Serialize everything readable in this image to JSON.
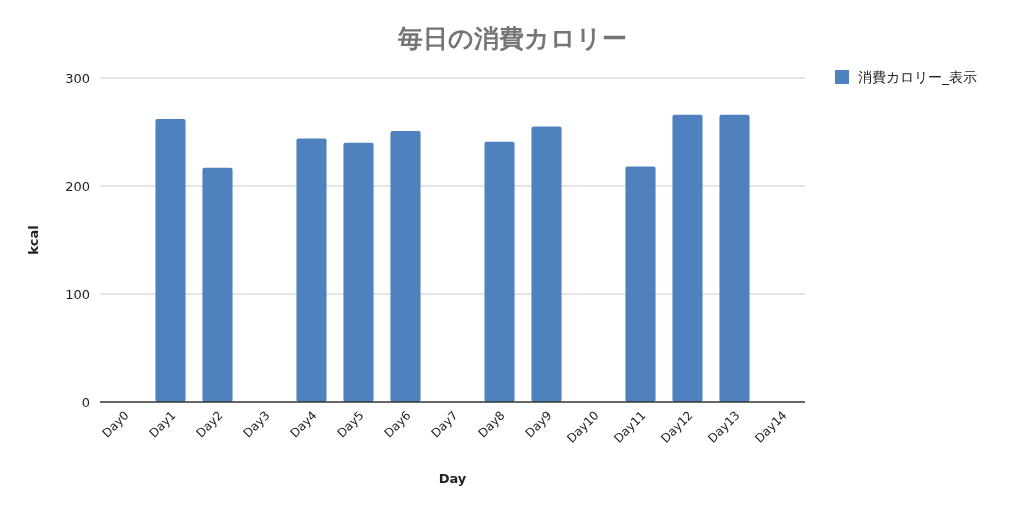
{
  "chart_data": {
    "type": "bar",
    "title": "毎日の消費カロリー",
    "xlabel": "Day",
    "ylabel": "kcal",
    "categories": [
      "Day0",
      "Day1",
      "Day2",
      "Day3",
      "Day4",
      "Day5",
      "Day6",
      "Day7",
      "Day8",
      "Day9",
      "Day10",
      "Day11",
      "Day12",
      "Day13",
      "Day14"
    ],
    "series": [
      {
        "name": "消費カロリー_表示",
        "color": "#4e81bd",
        "values": [
          null,
          262,
          217,
          null,
          244,
          240,
          251,
          null,
          241,
          255,
          null,
          218,
          266,
          266,
          null
        ]
      }
    ],
    "ylim": [
      0,
      300
    ],
    "yticks": [
      0,
      100,
      200,
      300
    ],
    "grid": "y",
    "legend": "top right"
  }
}
